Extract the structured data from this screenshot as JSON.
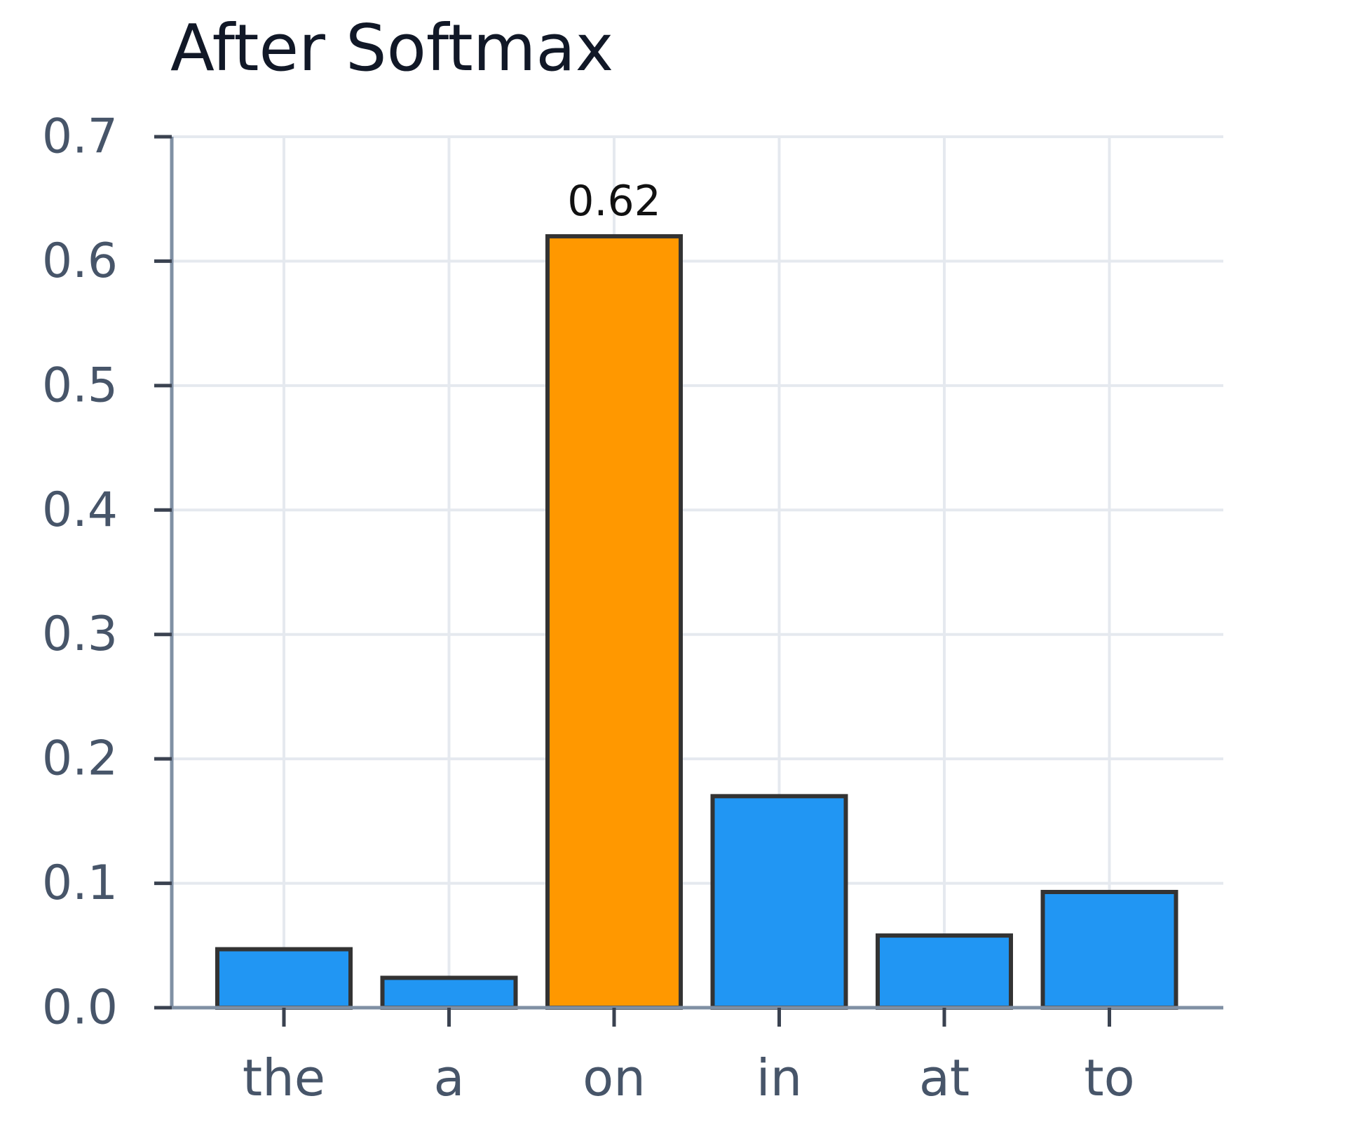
{
  "chart_data": {
    "type": "bar",
    "title": "After Softmax",
    "xlabel": "",
    "ylabel": "",
    "categories": [
      "the",
      "a",
      "on",
      "in",
      "at",
      "to"
    ],
    "values": [
      0.047,
      0.024,
      0.62,
      0.17,
      0.058,
      0.093
    ],
    "ylim": [
      0,
      0.7
    ],
    "yticks": [
      "0.0",
      "0.1",
      "0.2",
      "0.3",
      "0.4",
      "0.5",
      "0.6",
      "0.7"
    ],
    "grid": true,
    "legend": "none",
    "colors": {
      "default": "#2196f3",
      "highlight": "#ff9800",
      "edge": "#333333"
    },
    "highlight_index": 2,
    "annotations": [
      {
        "category": "on",
        "text": "0.62"
      }
    ]
  }
}
